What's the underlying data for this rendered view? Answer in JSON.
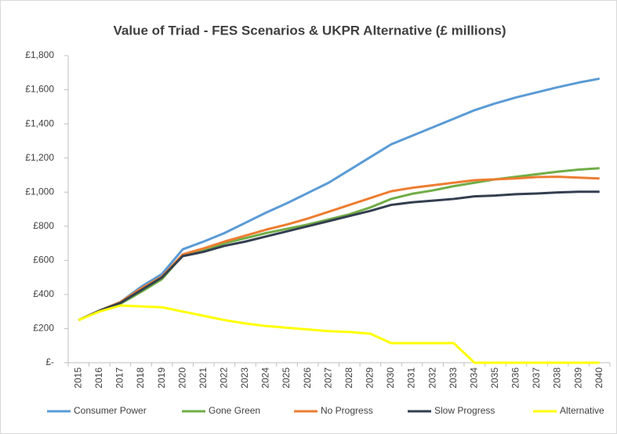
{
  "chart_data": {
    "type": "line",
    "title": "Value of Triad - FES Scenarios & UKPR Alternative (£ millions)",
    "categories": [
      "2015",
      "2016",
      "2017",
      "2018",
      "2019",
      "2020",
      "2021",
      "2022",
      "2023",
      "2024",
      "2025",
      "2026",
      "2027",
      "2028",
      "2029",
      "2030",
      "2031",
      "2032",
      "2033",
      "2034",
      "2035",
      "2036",
      "2037",
      "2038",
      "2039",
      "2040"
    ],
    "series": [
      {
        "name": "Consumer Power",
        "color": "#5b9bd5",
        "values": [
          250,
          305,
          355,
          445,
          520,
          665,
          710,
          760,
          820,
          880,
          935,
          995,
          1055,
          1130,
          1205,
          1280,
          1330,
          1380,
          1430,
          1480,
          1520,
          1555,
          1585,
          1615,
          1642,
          1665
        ]
      },
      {
        "name": "Gone Green",
        "color": "#70ad47",
        "values": [
          250,
          305,
          345,
          415,
          490,
          630,
          660,
          700,
          730,
          760,
          785,
          810,
          840,
          870,
          910,
          960,
          990,
          1010,
          1035,
          1055,
          1075,
          1090,
          1105,
          1120,
          1132,
          1140
        ]
      },
      {
        "name": "No Progress",
        "color": "#ed7d31",
        "values": [
          250,
          305,
          355,
          435,
          505,
          635,
          670,
          710,
          745,
          780,
          810,
          845,
          885,
          925,
          965,
          1005,
          1025,
          1040,
          1055,
          1070,
          1075,
          1080,
          1088,
          1090,
          1085,
          1080
        ]
      },
      {
        "name": "Slow Progress",
        "color": "#333f50",
        "values": [
          250,
          305,
          350,
          425,
          500,
          625,
          650,
          685,
          710,
          740,
          770,
          800,
          830,
          860,
          890,
          925,
          940,
          950,
          960,
          975,
          980,
          988,
          992,
          998,
          1002,
          1002
        ]
      },
      {
        "name": "Alternative",
        "color": "#ffff00",
        "values": [
          250,
          300,
          335,
          330,
          325,
          300,
          275,
          250,
          230,
          215,
          205,
          195,
          185,
          180,
          170,
          115,
          115,
          115,
          115,
          0,
          0,
          0,
          0,
          0,
          0,
          0
        ]
      }
    ],
    "ylim": [
      0,
      1800
    ],
    "yticks": [
      {
        "value": 0,
        "label": "£-"
      },
      {
        "value": 200,
        "label": "£200"
      },
      {
        "value": 400,
        "label": "£400"
      },
      {
        "value": 600,
        "label": "£600"
      },
      {
        "value": 800,
        "label": "£800"
      },
      {
        "value": 1000,
        "label": "£1,000"
      },
      {
        "value": 1200,
        "label": "£1,200"
      },
      {
        "value": 1400,
        "label": "£1,400"
      },
      {
        "value": 1600,
        "label": "£1,600"
      },
      {
        "value": 1800,
        "label": "£1,800"
      }
    ],
    "grid": false,
    "legend": "bottom"
  }
}
